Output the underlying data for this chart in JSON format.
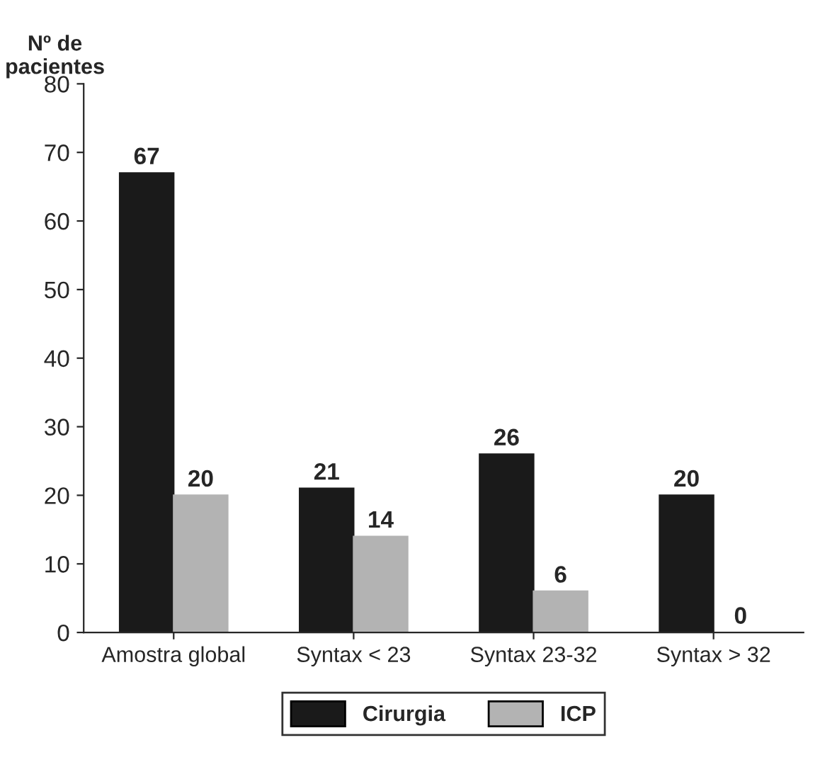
{
  "chart_data": {
    "type": "bar",
    "ylabel": "Nº de\npacientes",
    "categories": [
      "Amostra global",
      "Syntax < 23",
      "Syntax 23-32",
      "Syntax > 32"
    ],
    "series": [
      {
        "name": "Cirurgia",
        "color": "#1a1a1a",
        "values": [
          67,
          21,
          26,
          20
        ]
      },
      {
        "name": "ICP",
        "color": "#b3b3b3",
        "values": [
          20,
          14,
          6,
          0
        ]
      }
    ],
    "ylim": [
      0,
      80
    ],
    "yticks": [
      0,
      10,
      20,
      30,
      40,
      50,
      60,
      70,
      80
    ],
    "data_labels": true,
    "legend": "bottom",
    "grid": false
  }
}
